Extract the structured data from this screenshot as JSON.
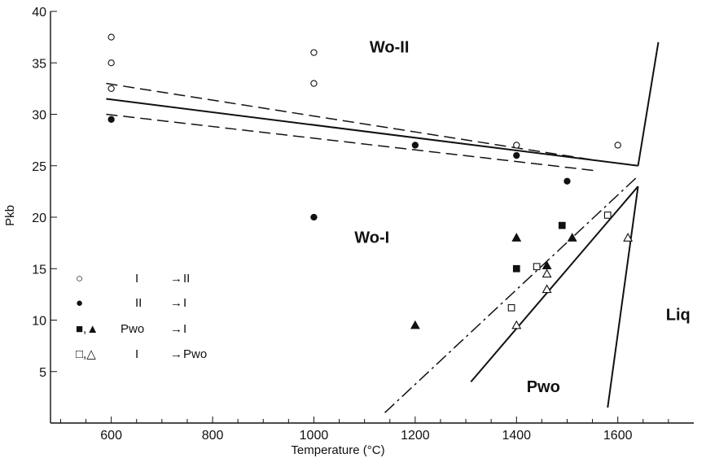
{
  "chart_data": {
    "type": "scatter",
    "xlabel": "Temperature (°C)",
    "ylabel": "Pkb",
    "xlim": [
      480,
      1750
    ],
    "ylim": [
      0,
      40
    ],
    "xticks": [
      600,
      800,
      1000,
      1200,
      1400,
      1600
    ],
    "yticks": [
      5,
      10,
      15,
      20,
      25,
      30,
      35,
      40
    ],
    "grid": false,
    "phase_labels": [
      {
        "text": "Wo-II",
        "x": 1110,
        "y": 36
      },
      {
        "text": "Wo-I",
        "x": 1080,
        "y": 17.5
      },
      {
        "text": "Pwo",
        "x": 1420,
        "y": 3
      },
      {
        "text": "Liq",
        "x": 1695,
        "y": 10
      }
    ],
    "series": [
      {
        "name": "I → II",
        "marker": "open-circle",
        "points": [
          [
            600,
            37.5
          ],
          [
            600,
            35
          ],
          [
            600,
            32.5
          ],
          [
            1000,
            36
          ],
          [
            1000,
            33
          ],
          [
            1400,
            27
          ],
          [
            1600,
            27
          ]
        ]
      },
      {
        "name": "II → I",
        "marker": "filled-circle",
        "points": [
          [
            600,
            29.5
          ],
          [
            1000,
            20
          ],
          [
            1200,
            27
          ],
          [
            1400,
            26
          ],
          [
            1500,
            23.5
          ]
        ]
      },
      {
        "name": "Pwo → I",
        "marker": "filled-square",
        "points": [
          [
            1400,
            15
          ],
          [
            1490,
            19.2
          ]
        ]
      },
      {
        "name": "Pwo → I",
        "marker": "filled-triangle",
        "points": [
          [
            1200,
            9.5
          ],
          [
            1400,
            18
          ],
          [
            1460,
            15.3
          ],
          [
            1510,
            18
          ]
        ]
      },
      {
        "name": "I → Pwo",
        "marker": "open-square",
        "points": [
          [
            1390,
            11.2
          ],
          [
            1440,
            15.2
          ],
          [
            1580,
            20.2
          ]
        ]
      },
      {
        "name": "I → Pwo",
        "marker": "open-triangle",
        "points": [
          [
            1400,
            9.5
          ],
          [
            1460,
            13
          ],
          [
            1460,
            14.5
          ],
          [
            1620,
            18
          ]
        ]
      }
    ],
    "lines": [
      {
        "style": "solid",
        "points": [
          [
            590,
            31.5
          ],
          [
            1640,
            25
          ]
        ]
      },
      {
        "style": "dashed",
        "points": [
          [
            590,
            33
          ],
          [
            1560,
            25.5
          ]
        ]
      },
      {
        "style": "dashed",
        "points": [
          [
            590,
            30
          ],
          [
            1560,
            24.5
          ]
        ]
      },
      {
        "style": "solid",
        "points": [
          [
            1580,
            1.5
          ],
          [
            1640,
            23
          ]
        ]
      },
      {
        "style": "solid",
        "points": [
          [
            1640,
            25
          ],
          [
            1680,
            37
          ]
        ]
      },
      {
        "style": "dashdot",
        "points": [
          [
            1140,
            1
          ],
          [
            1640,
            24
          ]
        ]
      },
      {
        "style": "solid",
        "points": [
          [
            1310,
            4
          ],
          [
            1640,
            23
          ]
        ]
      }
    ],
    "legend": {
      "placement": "bottom-left",
      "entries": [
        {
          "symbols": "○",
          "from": "I",
          "to": "II"
        },
        {
          "symbols": "●",
          "from": "II",
          "to": "I"
        },
        {
          "symbols": "■,▲",
          "from": "Pwo",
          "to": "I"
        },
        {
          "symbols": "□,△",
          "from": "I",
          "to": "Pwo"
        }
      ]
    },
    "arrow_glyph": "→"
  }
}
